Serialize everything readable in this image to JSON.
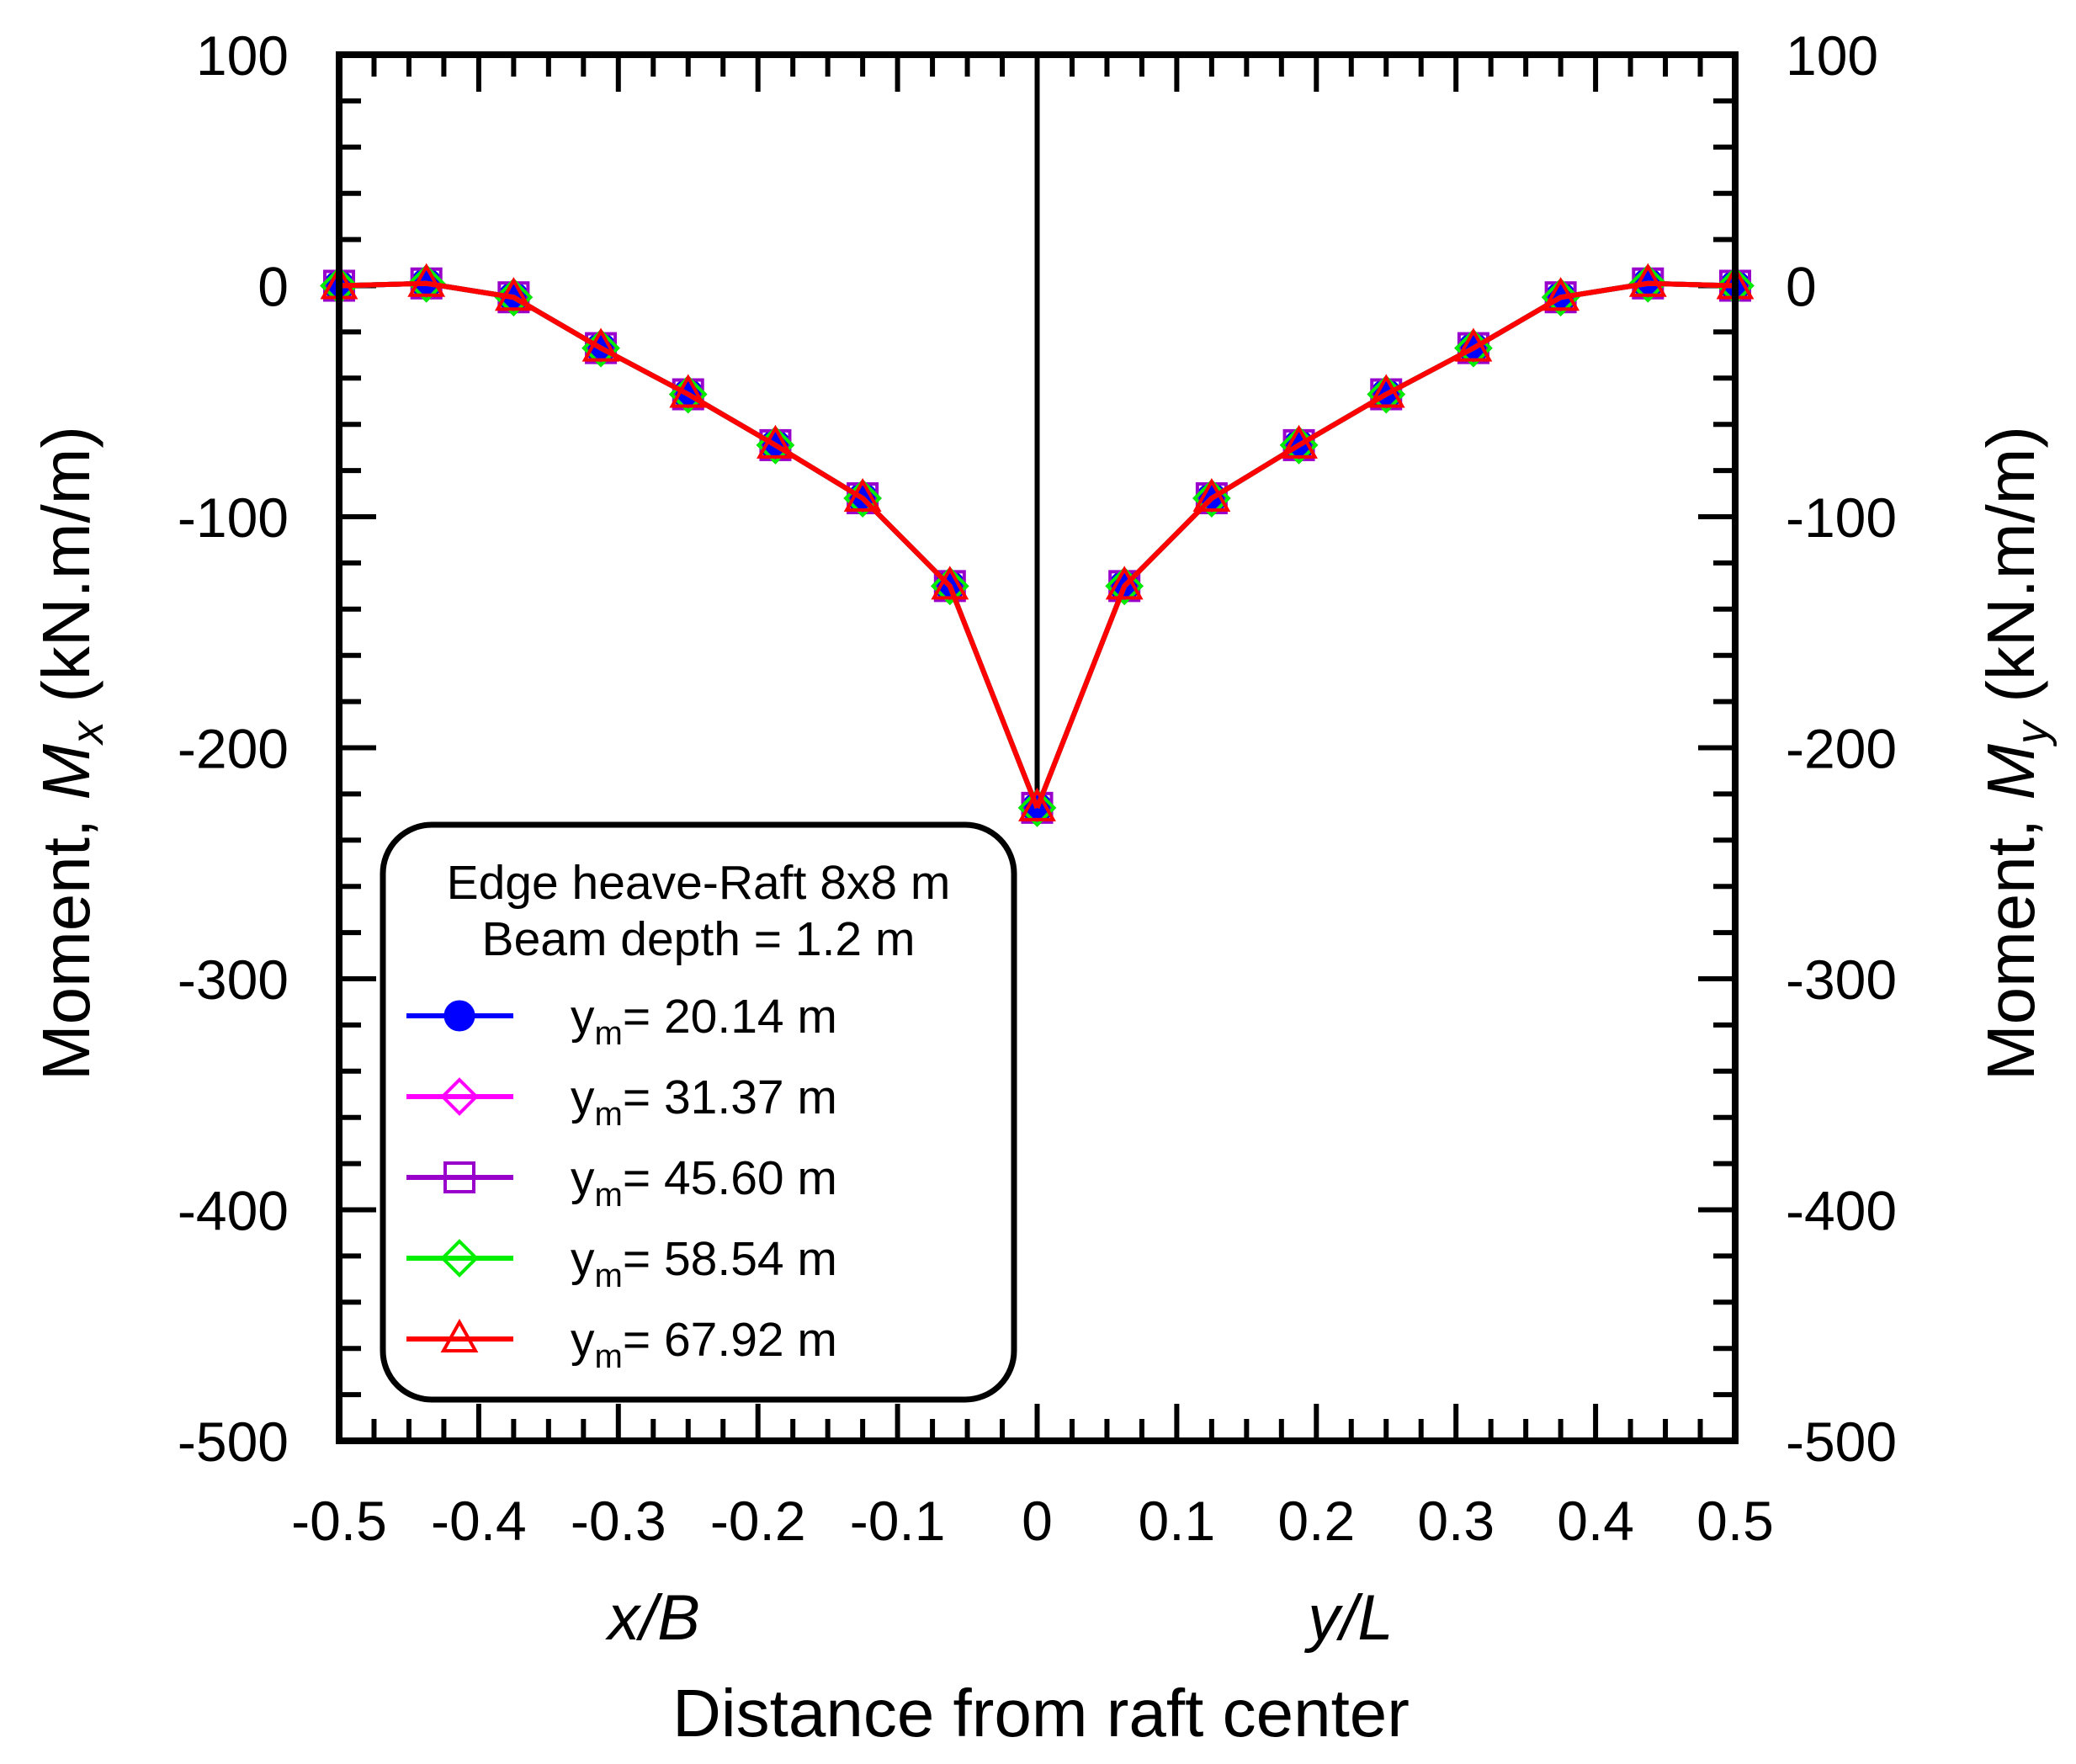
{
  "chart_data": {
    "type": "line",
    "xlabel": "Distance from raft center",
    "x_sub_left": "x/B",
    "x_sub_right": "y/L",
    "ylabel_left": {
      "prefix": "Moment, ",
      "var": "M",
      "sub": "x",
      "suffix": " (kN.m/m)"
    },
    "ylabel_right": {
      "prefix": "Moment, ",
      "var": "M",
      "sub": "y",
      "suffix": " (kN.m/m)"
    },
    "xlim": [
      -0.5,
      0.5
    ],
    "ylim": [
      -500,
      100
    ],
    "x_ticks": [
      -0.5,
      -0.4,
      -0.3,
      -0.2,
      -0.1,
      0,
      0.1,
      0.2,
      0.3,
      0.4,
      0.5
    ],
    "x_tick_labels": [
      "-0.5",
      "-0.4",
      "-0.3",
      "-0.2",
      "-0.1",
      "0",
      "0.1",
      "0.2",
      "0.3",
      "0.4",
      "0.5"
    ],
    "y_ticks": [
      100,
      0,
      -100,
      -200,
      -300,
      -400,
      -500
    ],
    "y_tick_labels": [
      "100",
      "0",
      "-100",
      "-200",
      "-300",
      "-400",
      "-500"
    ],
    "center_line_x": 0,
    "x": [
      -0.5,
      -0.4375,
      -0.375,
      -0.3125,
      -0.25,
      -0.1875,
      -0.125,
      -0.0625,
      0,
      0.0625,
      0.125,
      0.1875,
      0.25,
      0.3125,
      0.375,
      0.4375,
      0.5
    ],
    "legend": {
      "title_line1": "Edge heave-Raft 8x8 m",
      "title_line2": "Beam depth = 1.2 m",
      "position": "bottom-left"
    },
    "series": [
      {
        "name": "y",
        "sub": "m",
        "value_text": "= 20.14 m",
        "color": "#0000ff",
        "marker": "circle-filled",
        "values": [
          0,
          1,
          -5,
          -27,
          -47,
          -69,
          -92,
          -130,
          -226,
          -130,
          -92,
          -69,
          -47,
          -27,
          -5,
          1,
          0
        ]
      },
      {
        "name": "y",
        "sub": "m",
        "value_text": "= 31.37 m",
        "color": "#ff00ff",
        "marker": "diamond-open",
        "values": [
          0,
          1,
          -5,
          -27,
          -47,
          -69,
          -92,
          -130,
          -226,
          -130,
          -92,
          -69,
          -47,
          -27,
          -5,
          1,
          0
        ]
      },
      {
        "name": "y",
        "sub": "m",
        "value_text": "= 45.60 m",
        "color": "#9900cc",
        "marker": "square-open",
        "values": [
          0,
          1,
          -5,
          -27,
          -47,
          -69,
          -92,
          -130,
          -226,
          -130,
          -92,
          -69,
          -47,
          -27,
          -5,
          1,
          0
        ]
      },
      {
        "name": "y",
        "sub": "m",
        "value_text": "= 58.54 m",
        "color": "#00ee00",
        "marker": "diamond-open",
        "values": [
          0,
          1,
          -5,
          -27,
          -47,
          -69,
          -92,
          -130,
          -226,
          -130,
          -92,
          -69,
          -47,
          -27,
          -5,
          1,
          0
        ]
      },
      {
        "name": "y",
        "sub": "m",
        "value_text": "= 67.92 m",
        "color": "#ff0000",
        "marker": "triangle-open",
        "values": [
          0,
          1,
          -5,
          -27,
          -47,
          -69,
          -92,
          -130,
          -226,
          -130,
          -92,
          -69,
          -47,
          -27,
          -5,
          1,
          0
        ]
      }
    ]
  }
}
